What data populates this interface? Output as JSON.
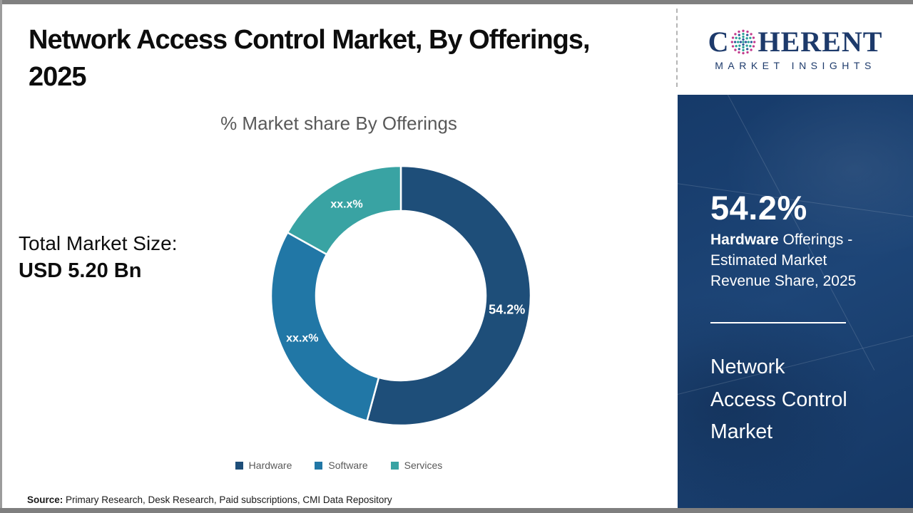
{
  "header": {
    "title_line1": "Network Access Control Market, By Offerings,",
    "title_line2": "2025"
  },
  "logo": {
    "brand_prefix": "C",
    "brand_suffix": "HERENT",
    "brand_sub": "MARKET INSIGHTS",
    "brand_color": "#1d3a6b",
    "globe_colors": {
      "outer": "#c23a8c",
      "mid": "#2b5d9b",
      "inner": "#2aa198"
    }
  },
  "chart_data": {
    "type": "pie",
    "donut": true,
    "title": "% Market share By Offerings",
    "categories": [
      "Hardware",
      "Software",
      "Services"
    ],
    "values": [
      54.2,
      28.9,
      16.9
    ],
    "labels": [
      "54.2%",
      "xx.x%",
      "xx.x%"
    ],
    "colors": [
      "#1e4e79",
      "#2177a6",
      "#39a3a3"
    ],
    "legend_position": "bottom",
    "start_angle_deg": 0,
    "direction": "clockwise"
  },
  "left_panel": {
    "total_label": "Total Market Size:",
    "total_value": "USD 5.20 Bn"
  },
  "sidebar": {
    "stat_value": "54.2%",
    "stat_desc_bold": "Hardware",
    "stat_desc_line1_rest": " Offerings -",
    "stat_desc_line2": "Estimated Market",
    "stat_desc_line3": "Revenue Share, 2025",
    "market_name_line1": "Network",
    "market_name_line2": "Access Control",
    "market_name_line3": "Market"
  },
  "footer": {
    "source_label": "Source:",
    "source_text": " Primary Research, Desk Research, Paid subscriptions, CMI Data Repository"
  }
}
